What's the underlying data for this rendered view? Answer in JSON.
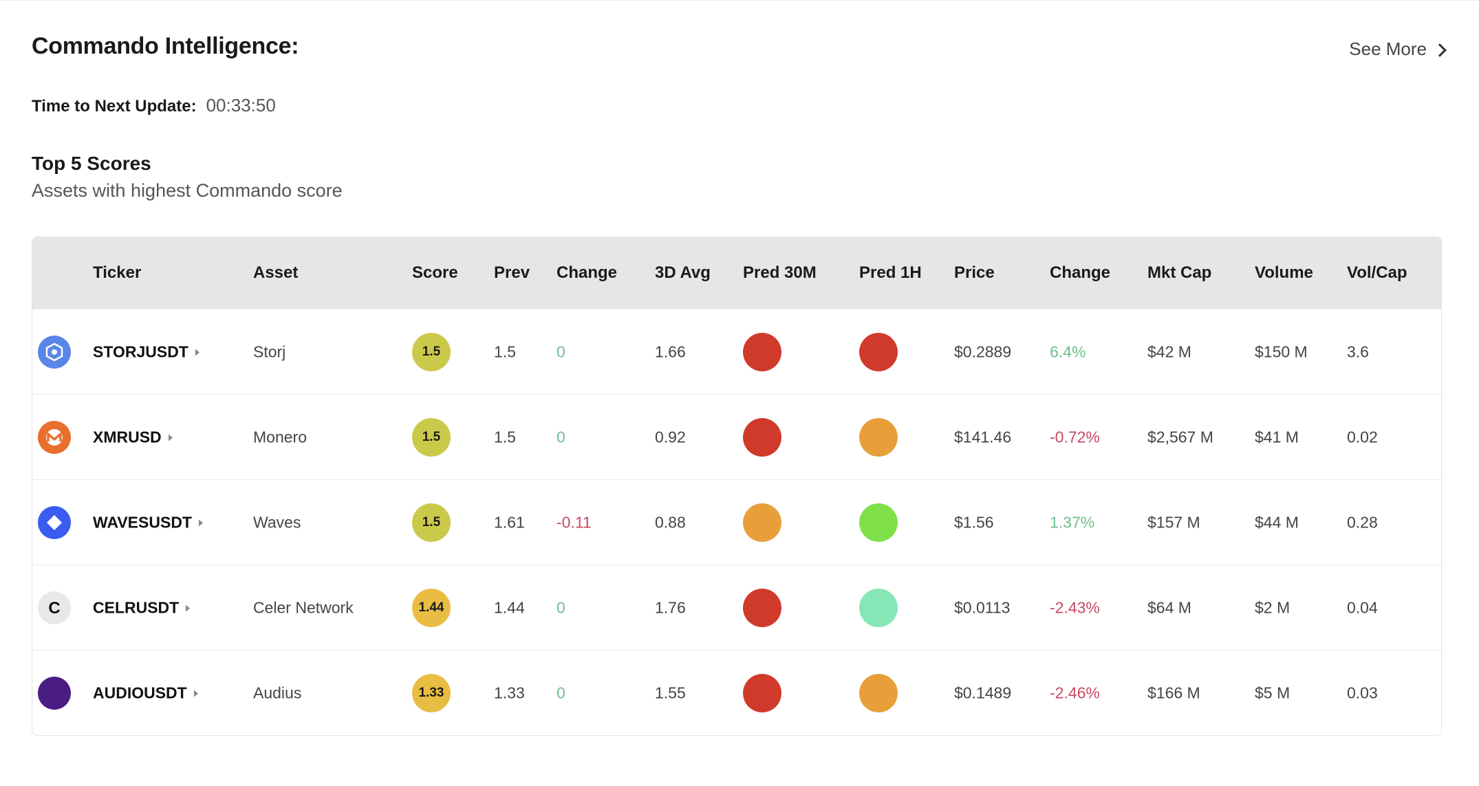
{
  "header": {
    "title": "Commando Intelligence:",
    "see_more": "See More"
  },
  "timer": {
    "label": "Time to Next Update:",
    "value": "00:33:50"
  },
  "section": {
    "title": "Top 5 Scores",
    "subtitle": "Assets with highest Commando score"
  },
  "columns": [
    "Ticker",
    "Asset",
    "Score",
    "Prev",
    "Change",
    "3D Avg",
    "Pred 30M",
    "Pred 1H",
    "Price",
    "Change",
    "Mkt Cap",
    "Volume",
    "Vol/Cap"
  ],
  "colors": {
    "red": "#d03a2b",
    "orange": "#e89f3a",
    "green": "#7fe04a",
    "mint": "#86e6b6",
    "score_olive": "#cbc94a",
    "score_yellow": "#e9bd44",
    "positive": "#6cbf8e",
    "negative": "#c94a62"
  },
  "rows": [
    {
      "logo_icon": "storj-icon",
      "logo_color": "#5a86e8",
      "ticker": "STORJUSDT",
      "asset": "Storj",
      "score": "1.5",
      "score_color": "#cbc94a",
      "prev": "1.5",
      "change": "0",
      "change_dir": "pos",
      "avg3d": "1.66",
      "pred30m_color": "#d03a2b",
      "pred1h_color": "#d03a2b",
      "price": "$0.2889",
      "pchange": "6.4%",
      "pchange_dir": "pos",
      "mktcap": "$42 M",
      "volume": "$150 M",
      "volcap": "3.6"
    },
    {
      "logo_icon": "monero-icon",
      "logo_color": "#e86f2d",
      "ticker": "XMRUSD",
      "asset": "Monero",
      "score": "1.5",
      "score_color": "#cbc94a",
      "prev": "1.5",
      "change": "0",
      "change_dir": "pos",
      "avg3d": "0.92",
      "pred30m_color": "#d03a2b",
      "pred1h_color": "#e89f3a",
      "price": "$141.46",
      "pchange": "-0.72%",
      "pchange_dir": "neg",
      "mktcap": "$2,567 M",
      "volume": "$41 M",
      "volcap": "0.02"
    },
    {
      "logo_icon": "waves-icon",
      "logo_color": "#3a5cf0",
      "ticker": "WAVESUSDT",
      "asset": "Waves",
      "score": "1.5",
      "score_color": "#cbc94a",
      "prev": "1.61",
      "change": "-0.11",
      "change_dir": "neg",
      "avg3d": "0.88",
      "pred30m_color": "#e89f3a",
      "pred1h_color": "#7fe04a",
      "price": "$1.56",
      "pchange": "1.37%",
      "pchange_dir": "pos",
      "mktcap": "$157 M",
      "volume": "$44 M",
      "volcap": "0.28"
    },
    {
      "logo_icon": "celer-icon",
      "logo_color": "#e8e8e8",
      "ticker": "CELRUSDT",
      "asset": "Celer Network",
      "score": "1.44",
      "score_color": "#e9bd44",
      "prev": "1.44",
      "change": "0",
      "change_dir": "pos",
      "avg3d": "1.76",
      "pred30m_color": "#d03a2b",
      "pred1h_color": "#86e6b6",
      "price": "$0.0113",
      "pchange": "-2.43%",
      "pchange_dir": "neg",
      "mktcap": "$64 M",
      "volume": "$2 M",
      "volcap": "0.04"
    },
    {
      "logo_icon": "audius-icon",
      "logo_color": "#4a1d82",
      "ticker": "AUDIOUSDT",
      "asset": "Audius",
      "score": "1.33",
      "score_color": "#e9bd44",
      "prev": "1.33",
      "change": "0",
      "change_dir": "pos",
      "avg3d": "1.55",
      "pred30m_color": "#d03a2b",
      "pred1h_color": "#e89f3a",
      "price": "$0.1489",
      "pchange": "-2.46%",
      "pchange_dir": "neg",
      "mktcap": "$166 M",
      "volume": "$5 M",
      "volcap": "0.03"
    }
  ]
}
